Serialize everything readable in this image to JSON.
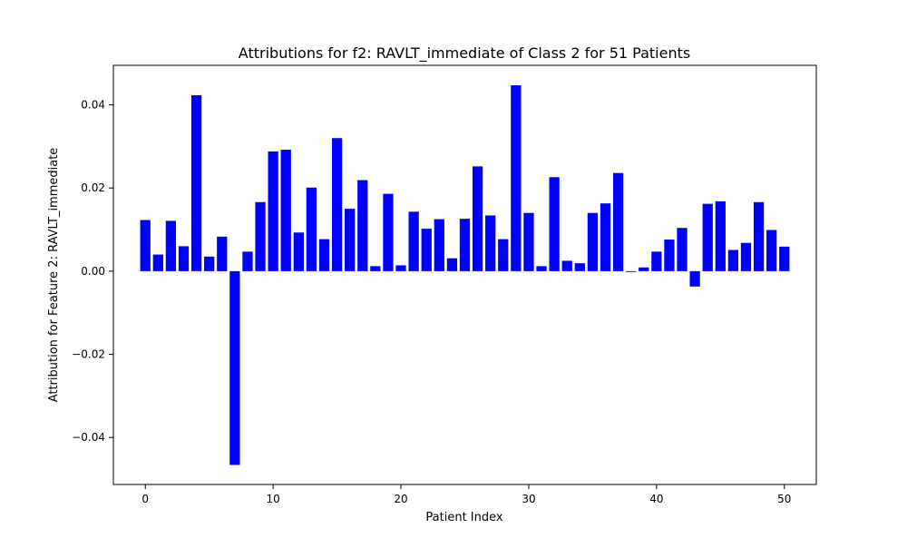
{
  "chart_data": {
    "type": "bar",
    "title": "Attributions for f2: RAVLT_immediate of Class 2 for 51 Patients",
    "xlabel": "Patient Index",
    "ylabel": "Attribution for Feature 2: RAVLT_immediate",
    "xlim": [
      -2.5,
      52.5
    ],
    "ylim": [
      -0.0513,
      0.0495
    ],
    "x_ticks": [
      0,
      10,
      20,
      30,
      40,
      50
    ],
    "x_tick_labels": [
      "0",
      "10",
      "20",
      "30",
      "40",
      "50"
    ],
    "y_ticks": [
      -0.04,
      -0.02,
      0.0,
      0.02,
      0.04
    ],
    "y_tick_labels": [
      "−0.04",
      "−0.02",
      "0.00",
      "0.02",
      "0.04"
    ],
    "grid": false,
    "legend": false,
    "bar_color": "#0000ff",
    "categories": [
      0,
      1,
      2,
      3,
      4,
      5,
      6,
      7,
      8,
      9,
      10,
      11,
      12,
      13,
      14,
      15,
      16,
      17,
      18,
      19,
      20,
      21,
      22,
      23,
      24,
      25,
      26,
      27,
      28,
      29,
      30,
      31,
      32,
      33,
      34,
      35,
      36,
      37,
      38,
      39,
      40,
      41,
      42,
      43,
      44,
      45,
      46,
      47,
      48,
      49,
      50
    ],
    "values": [
      0.0123,
      0.004,
      0.0121,
      0.006,
      0.0423,
      0.0035,
      0.0083,
      -0.0466,
      0.0047,
      0.0166,
      0.0288,
      0.0292,
      0.0093,
      0.0201,
      0.0077,
      0.032,
      0.015,
      0.0219,
      0.0012,
      0.0186,
      0.0014,
      0.0143,
      0.0102,
      0.0125,
      0.0031,
      0.0126,
      0.0252,
      0.0134,
      0.0077,
      0.0447,
      0.014,
      0.0012,
      0.0226,
      0.0025,
      0.0019,
      0.014,
      0.0163,
      0.0236,
      -0.0002,
      0.0009,
      0.0047,
      0.0076,
      0.0104,
      -0.0037,
      0.0162,
      0.0168,
      0.0051,
      0.0068,
      0.0166,
      0.0099,
      0.0059
    ]
  }
}
